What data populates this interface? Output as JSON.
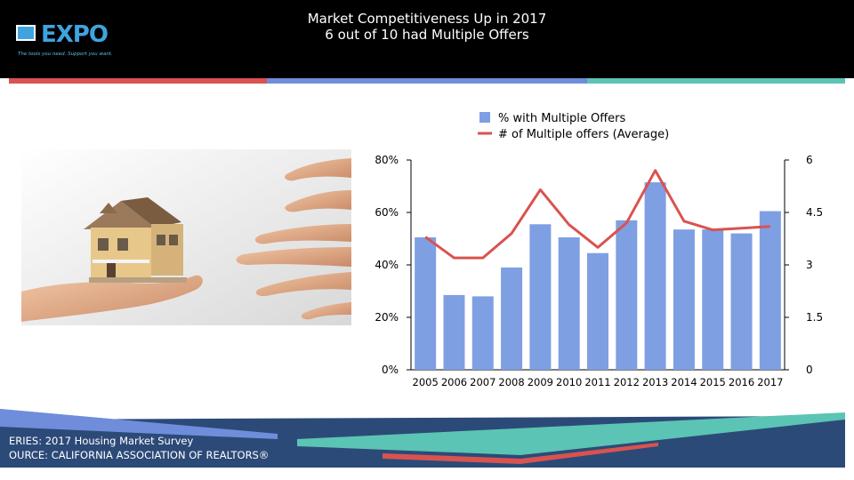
{
  "header": {
    "logo_text": "EXPO",
    "logo_tagline": "The tools you need. Support you want.",
    "title_line1": "Market Competitiveness Up in 2017",
    "title_line2": "6 out of 10 had Multiple Offers"
  },
  "colors": {
    "bar": "#7f9fe3",
    "line": "#d9534f",
    "footer_navy": "#2c4a78",
    "teal": "#5bc4b4",
    "blue": "#6f8ddb",
    "red": "#d9534f"
  },
  "chart_data": {
    "type": "bar",
    "categories": [
      "2005",
      "2006",
      "2007",
      "2008",
      "2009",
      "2010",
      "2011",
      "2012",
      "2013",
      "2014",
      "2015",
      "2016",
      "2017"
    ],
    "series": [
      {
        "name": "% with Multiple Offers",
        "type": "bar",
        "axis": "left",
        "values": [
          50.5,
          28.5,
          28,
          39,
          55.5,
          50.5,
          44.5,
          57,
          71.5,
          53.5,
          53.5,
          52,
          60.5
        ]
      },
      {
        "name": "# of Multiple offers (Average)",
        "type": "line",
        "axis": "right",
        "values": [
          3.8,
          3.2,
          3.2,
          3.9,
          5.15,
          4.15,
          3.5,
          4.2,
          5.7,
          4.25,
          4.0,
          4.05,
          4.1
        ]
      }
    ],
    "y_left": {
      "lim": [
        0,
        80
      ],
      "ticks": [
        "0%",
        "20%",
        "40%",
        "60%",
        "80%"
      ]
    },
    "y_right": {
      "lim": [
        0,
        6
      ],
      "ticks": [
        "0",
        "1.5",
        "3",
        "4.5",
        "6"
      ]
    },
    "legend_position": "top",
    "grid": false
  },
  "footer": {
    "series_label": "ERIES: 2017 Housing Market Survey",
    "source_label": "OURCE:  CALIFORNIA ASSOCIATION OF REALTORS®"
  }
}
